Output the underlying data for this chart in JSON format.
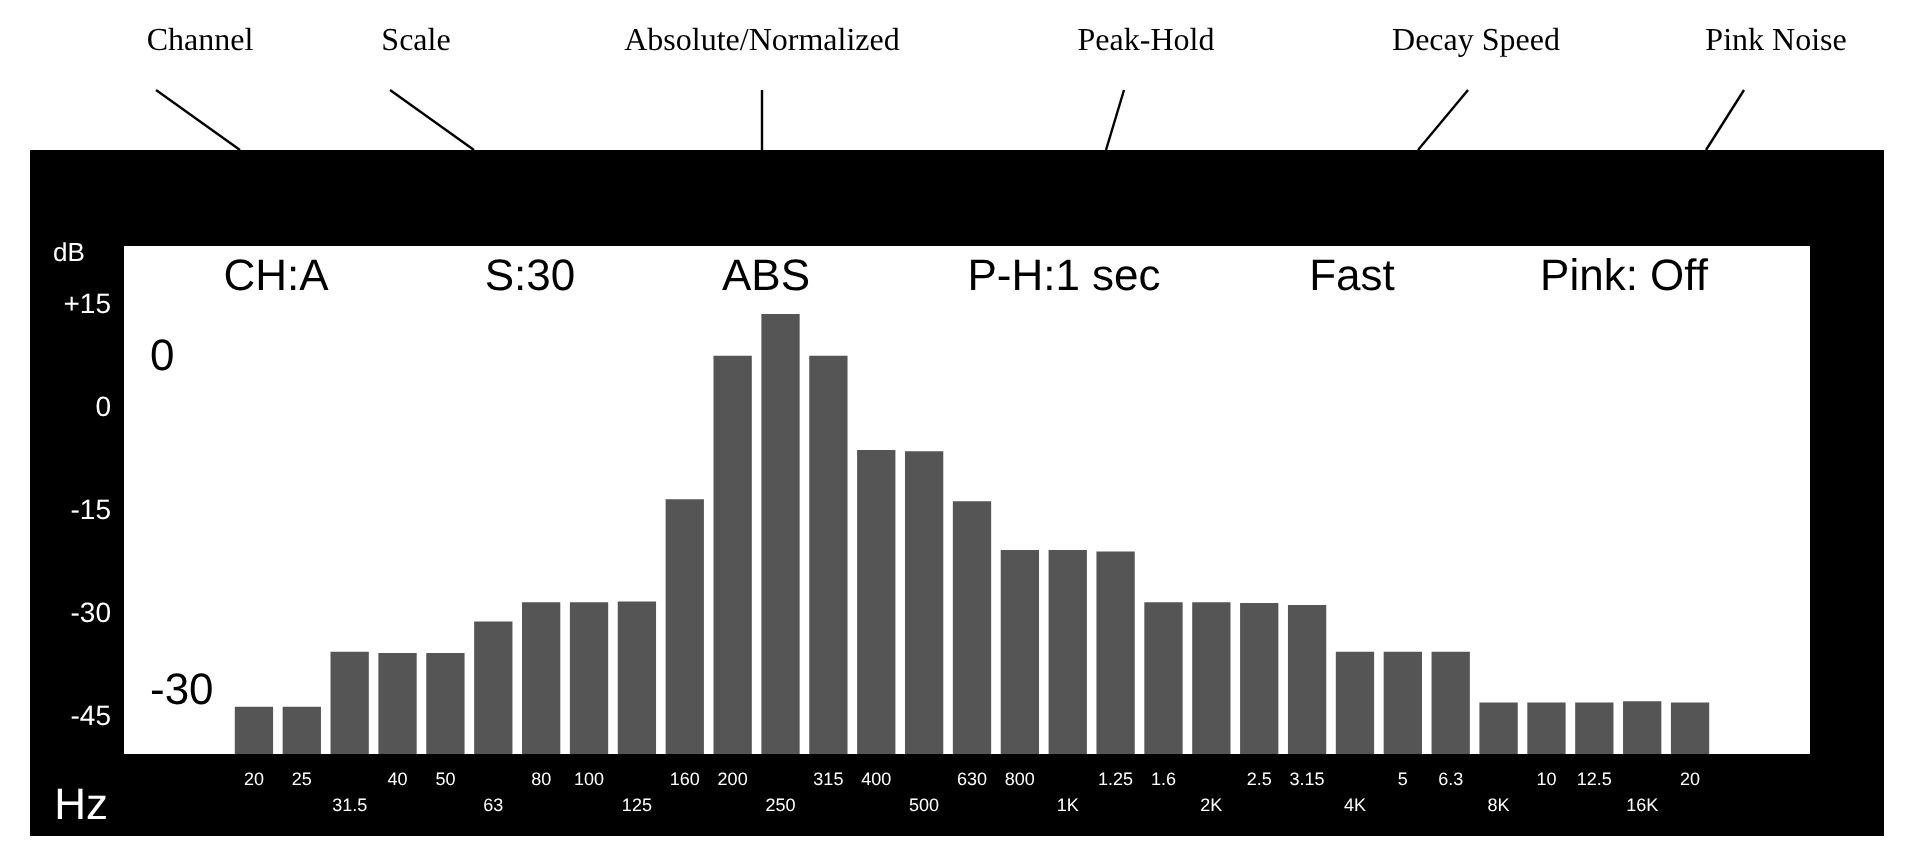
{
  "chart_data": {
    "type": "bar",
    "xlabel": "Hz",
    "ylabel": "dB",
    "categories": [
      "20",
      "25",
      "31.5",
      "40",
      "50",
      "63",
      "80",
      "100",
      "125",
      "160",
      "200",
      "250",
      "315",
      "400",
      "500",
      "630",
      "800",
      "1K",
      "1.25",
      "1.6",
      "2K",
      "2.5",
      "3.15",
      "4K",
      "5",
      "6.3",
      "8K",
      "10",
      "12.5",
      "16K",
      "20"
    ],
    "values": [
      6.9,
      6.9,
      14.9,
      14.7,
      14.7,
      19.3,
      22.1,
      22.1,
      22.2,
      37.1,
      58,
      64.1,
      58,
      44.3,
      44.1,
      36.8,
      29.7,
      29.7,
      29.5,
      22.1,
      22.1,
      22,
      21.7,
      14.9,
      14.9,
      14.9,
      7.5,
      7.5,
      7.5,
      7.7,
      7.5
    ],
    "base": [
      -50.5,
      -50.5,
      -50.5,
      -50.5,
      -50.5,
      -50.5,
      -50.5,
      -50.5,
      -50.5,
      -50.5,
      -50.5,
      -50.5,
      -50.5,
      -50.5,
      -50.5,
      -50.5,
      -50.5,
      -50.5,
      -50.5,
      -50.5,
      -50.5,
      -50.5,
      -50.5,
      -50.5,
      -50.5,
      -50.5,
      -50.5,
      -50.5,
      -50.5,
      -50.5,
      -50.5
    ],
    "color": "#555555",
    "ylim": [
      -50.5,
      23.5
    ],
    "yticks": [
      {
        "value": 15,
        "label": "+15"
      },
      0,
      -15,
      -30,
      -45
    ],
    "annotations": [
      "Channel",
      "Scale",
      "Absolute/Normalized",
      "Peak-Hold",
      "Decay Speed",
      "Pink Noise",
      "CH:A",
      "S:30",
      "ABS",
      "P-H:1 sec",
      "Fast",
      "Pink: Off",
      "0",
      "-30"
    ],
    "grid": false
  }
}
